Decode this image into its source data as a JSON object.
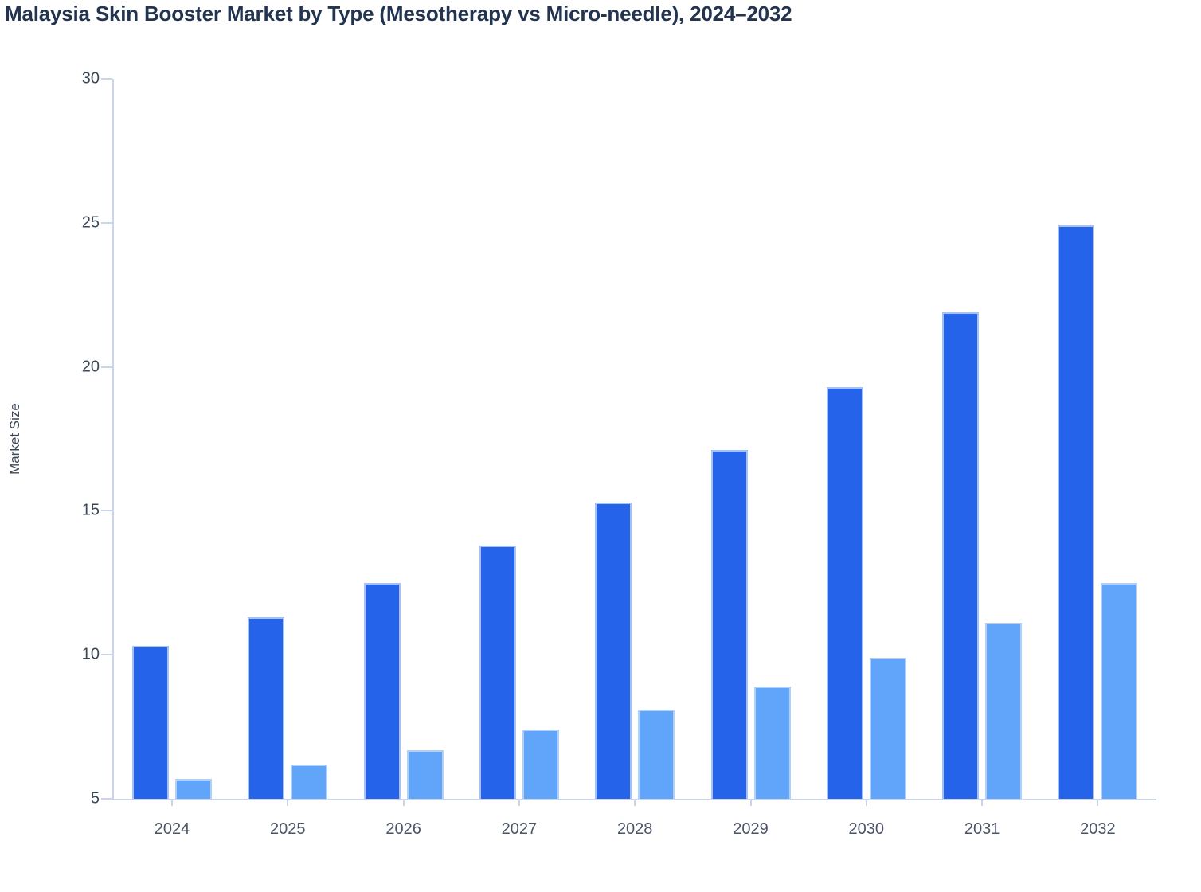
{
  "chart_data": {
    "type": "bar",
    "title": "Malaysia Skin Booster Market by Type (Mesotherapy vs Micro-needle), 2024–2032",
    "xlabel": "",
    "ylabel": "Market Size",
    "categories": [
      "2024",
      "2025",
      "2026",
      "2027",
      "2028",
      "2029",
      "2030",
      "2031",
      "2032"
    ],
    "series": [
      {
        "name": "Mesotherapy",
        "color": "#2563EB",
        "values": [
          10.3,
          11.3,
          12.5,
          13.8,
          15.3,
          17.1,
          19.3,
          21.9,
          24.9
        ]
      },
      {
        "name": "Micro-needle",
        "color": "#60A5FA",
        "values": [
          5.7,
          6.2,
          6.7,
          7.4,
          8.1,
          8.9,
          9.9,
          11.1,
          12.5
        ]
      }
    ],
    "ylim": [
      5,
      30
    ],
    "yticks": [
      5,
      10,
      15,
      20,
      25,
      30
    ],
    "grid": false,
    "legend_position": "none",
    "bar_baseline": 5
  },
  "colors": {
    "series_dark": "#2563EB",
    "series_light": "#60A5FA",
    "title_text": "#22344F",
    "y_tick_text": "#3B4859",
    "x_tick_text": "#4A5668",
    "axis_line": "#CBD5EA"
  }
}
